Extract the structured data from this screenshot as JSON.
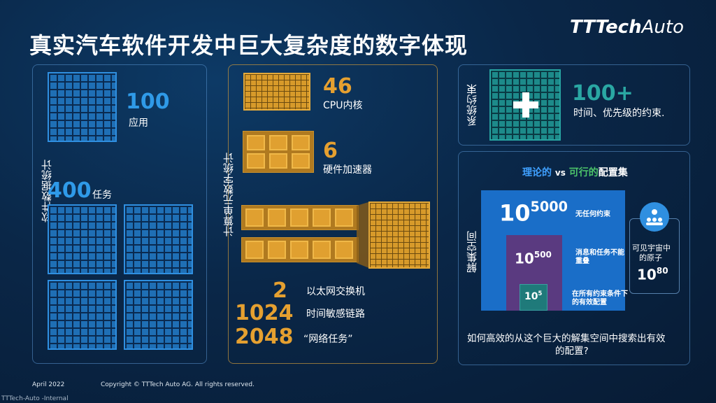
{
  "title": "真实汽车软件开发中巨大复杂度的数字体现",
  "logo": {
    "bold": "TTTech",
    "thin": "Auto"
  },
  "software": {
    "label": "软件数据统计",
    "apps_value": "100",
    "apps_label": "应用",
    "tasks_value": "400",
    "tasks_label": "任务"
  },
  "compute": {
    "label": "计算单元数字统计",
    "cpu_value": "46",
    "cpu_label": "CPU内核",
    "hw_value": "6",
    "hw_label": "硬件加速器",
    "switch_value": "2",
    "switch_label": "以太网交换机",
    "links_value": "1024",
    "links_label": "时间敏感链路",
    "nettask_value": "2048",
    "nettask_label": "“网络任务”"
  },
  "constraints": {
    "label": "系统约束",
    "value": "100+",
    "desc": "时间、优先级的约束."
  },
  "solution": {
    "label": "解集空间",
    "header_a": "理论的",
    "header_vs": "vs",
    "header_b": "可行的",
    "header_c": "配置集",
    "big_base": "10",
    "big_exp": "5000",
    "big_desc": "无任何约束",
    "mid_base": "10",
    "mid_exp": "500",
    "mid_desc_1": "消息和任务不能",
    "mid_desc_2": "重叠",
    "small_base": "10",
    "small_exp": "5",
    "small_desc_1": "在所有约束条件下",
    "small_desc_2": "的有效配置",
    "atoms_label_1": "可见宇宙中",
    "atoms_label_2": "的原子",
    "atoms_base": "10",
    "atoms_exp": "80",
    "question_1": "如何高效的从这个巨大的解集空间中搜索出有效",
    "question_2": "的配置?"
  },
  "footer": {
    "date": "April 2022",
    "copyright": "Copyright © TTTech Auto AG. All rights reserved.",
    "classification": "TTTech-Auto -Internal"
  },
  "colors": {
    "blue": "#2f9ae8",
    "orange": "#e5a030",
    "teal": "#2aa7a3",
    "green_highlight": "#4cc36a",
    "blue_highlight": "#3fa0ff"
  }
}
